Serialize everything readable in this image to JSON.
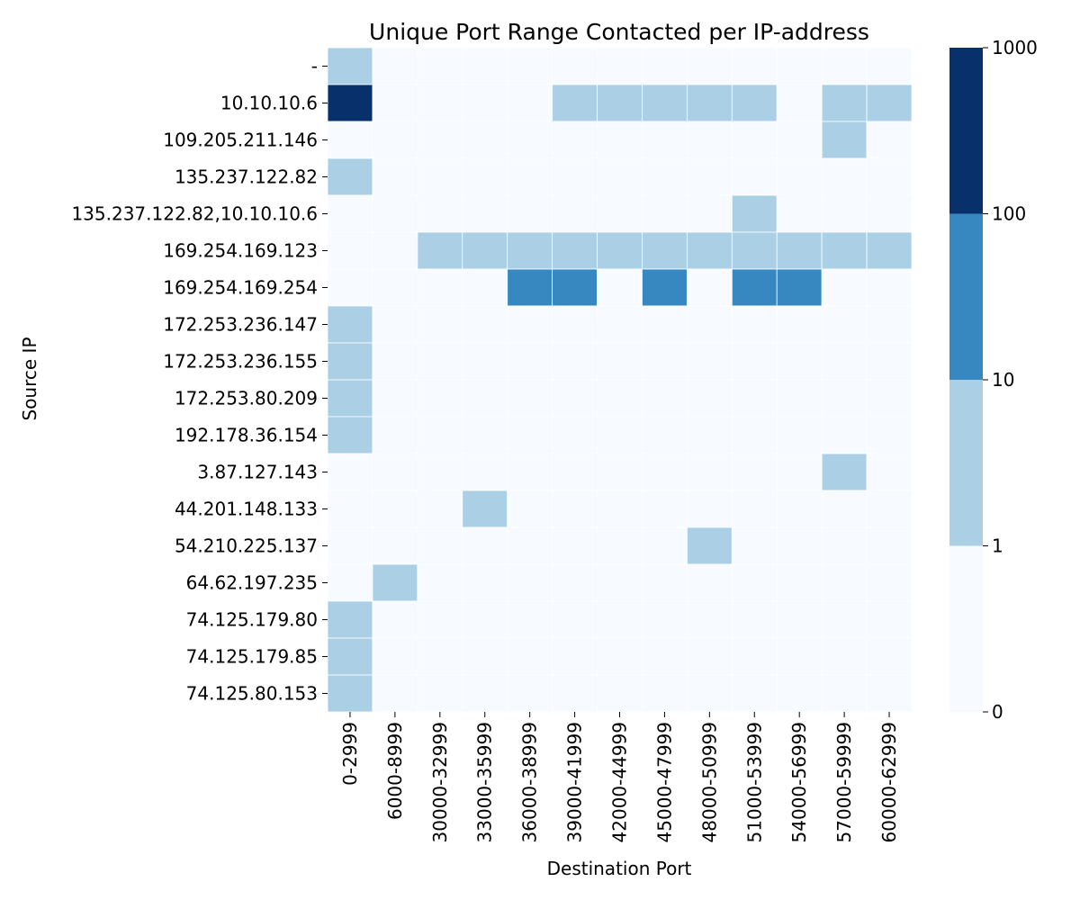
{
  "chart_data": {
    "type": "heatmap",
    "title": "Unique Port Range Contacted per IP-address",
    "xlabel": "Destination Port",
    "ylabel": "Source IP",
    "x_categories": [
      "0-2999",
      "6000-8999",
      "30000-32999",
      "33000-35999",
      "36000-38999",
      "39000-41999",
      "42000-44999",
      "45000-47999",
      "48000-50999",
      "51000-53999",
      "54000-56999",
      "57000-59999",
      "60000-62999"
    ],
    "y_categories": [
      "-",
      "10.10.10.6",
      "109.205.211.146",
      "135.237.122.82",
      "135.237.122.82,10.10.10.6",
      "169.254.169.123",
      "169.254.169.254",
      "172.253.236.147",
      "172.253.236.155",
      "172.253.80.209",
      "192.178.36.154",
      "3.87.127.143",
      "44.201.148.133",
      "54.210.225.137",
      "64.62.197.235",
      "74.125.179.80",
      "74.125.179.85",
      "74.125.80.153"
    ],
    "values": [
      [
        1,
        0,
        0,
        0,
        0,
        0,
        0,
        0,
        0,
        0,
        0,
        0,
        0
      ],
      [
        100,
        0,
        0,
        0,
        0,
        1,
        1,
        1,
        1,
        1,
        0,
        1,
        1
      ],
      [
        0,
        0,
        0,
        0,
        0,
        0,
        0,
        0,
        0,
        0,
        0,
        1,
        0
      ],
      [
        1,
        0,
        0,
        0,
        0,
        0,
        0,
        0,
        0,
        0,
        0,
        0,
        0
      ],
      [
        0,
        0,
        0,
        0,
        0,
        0,
        0,
        0,
        0,
        1,
        0,
        0,
        0
      ],
      [
        0,
        0,
        1,
        1,
        1,
        1,
        1,
        1,
        1,
        1,
        1,
        1,
        1
      ],
      [
        0,
        0,
        0,
        0,
        10,
        10,
        0,
        10,
        0,
        10,
        10,
        0,
        0
      ],
      [
        1,
        0,
        0,
        0,
        0,
        0,
        0,
        0,
        0,
        0,
        0,
        0,
        0
      ],
      [
        1,
        0,
        0,
        0,
        0,
        0,
        0,
        0,
        0,
        0,
        0,
        0,
        0
      ],
      [
        1,
        0,
        0,
        0,
        0,
        0,
        0,
        0,
        0,
        0,
        0,
        0,
        0
      ],
      [
        1,
        0,
        0,
        0,
        0,
        0,
        0,
        0,
        0,
        0,
        0,
        0,
        0
      ],
      [
        0,
        0,
        0,
        0,
        0,
        0,
        0,
        0,
        0,
        0,
        0,
        1,
        0
      ],
      [
        0,
        0,
        0,
        1,
        0,
        0,
        0,
        0,
        0,
        0,
        0,
        0,
        0
      ],
      [
        0,
        0,
        0,
        0,
        0,
        0,
        0,
        0,
        1,
        0,
        0,
        0,
        0
      ],
      [
        0,
        1,
        0,
        0,
        0,
        0,
        0,
        0,
        0,
        0,
        0,
        0,
        0
      ],
      [
        1,
        0,
        0,
        0,
        0,
        0,
        0,
        0,
        0,
        0,
        0,
        0,
        0
      ],
      [
        1,
        0,
        0,
        0,
        0,
        0,
        0,
        0,
        0,
        0,
        0,
        0,
        0
      ],
      [
        1,
        0,
        0,
        0,
        0,
        0,
        0,
        0,
        0,
        0,
        0,
        0,
        0
      ]
    ],
    "colorbar": {
      "ticks": [
        "0",
        "1",
        "10",
        "100",
        "1000"
      ],
      "bins": [
        {
          "min": 0,
          "max": 1,
          "color": "#f7fbff"
        },
        {
          "min": 1,
          "max": 10,
          "color": "#abcfe5"
        },
        {
          "min": 10,
          "max": 100,
          "color": "#3787c0"
        },
        {
          "min": 100,
          "max": 1000,
          "color": "#08306b"
        }
      ]
    },
    "grid_lines": "white"
  }
}
